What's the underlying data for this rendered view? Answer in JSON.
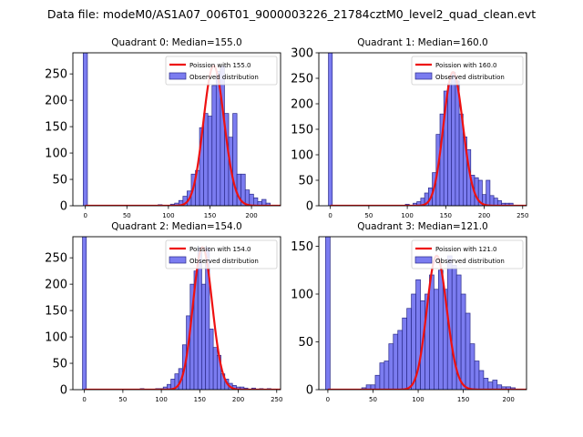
{
  "figure": {
    "suptitle": "Data file: modeM0/AS1A07_006T01_9000003226_21784cztM0_level2_quad_clean.evt"
  },
  "chart_data": [
    {
      "type": "bar",
      "title": "Quadrant 0: Median=155.0",
      "legend": [
        "Poission with 155.0",
        "Observed distribution"
      ],
      "legend_position": "top-right",
      "xlim": [
        -15,
        235
      ],
      "ylim": [
        0,
        290
      ],
      "xticks": [
        0,
        50,
        100,
        150,
        200
      ],
      "yticks": [
        0,
        50,
        100,
        150,
        200,
        250
      ],
      "bin_width": 5,
      "poisson_mean": 155,
      "zero_bin_value": 290,
      "bins": [
        [
          90,
          2
        ],
        [
          100,
          1
        ],
        [
          105,
          3
        ],
        [
          110,
          5
        ],
        [
          115,
          10
        ],
        [
          120,
          18
        ],
        [
          125,
          28
        ],
        [
          130,
          60
        ],
        [
          135,
          67
        ],
        [
          140,
          148
        ],
        [
          145,
          175
        ],
        [
          150,
          170
        ],
        [
          155,
          228
        ],
        [
          160,
          255
        ],
        [
          165,
          265
        ],
        [
          170,
          175
        ],
        [
          175,
          130
        ],
        [
          180,
          175
        ],
        [
          185,
          60
        ],
        [
          190,
          60
        ],
        [
          195,
          30
        ],
        [
          200,
          22
        ],
        [
          205,
          15
        ],
        [
          210,
          8
        ],
        [
          215,
          12
        ],
        [
          220,
          5
        ]
      ]
    },
    {
      "type": "bar",
      "title": "Quadrant 1: Median=160.0",
      "legend": [
        "Poission with 160.0",
        "Observed distribution"
      ],
      "legend_position": "top-right",
      "xlim": [
        -15,
        255
      ],
      "ylim": [
        0,
        300
      ],
      "xticks": [
        0,
        50,
        100,
        150,
        200,
        250
      ],
      "yticks": [
        0,
        50,
        100,
        150,
        200,
        250,
        300
      ],
      "bin_width": 5,
      "poisson_mean": 160,
      "zero_bin_value": 300,
      "bins": [
        [
          100,
          3
        ],
        [
          110,
          5
        ],
        [
          115,
          8
        ],
        [
          120,
          15
        ],
        [
          125,
          25
        ],
        [
          130,
          35
        ],
        [
          135,
          65
        ],
        [
          140,
          140
        ],
        [
          145,
          180
        ],
        [
          150,
          225
        ],
        [
          155,
          240
        ],
        [
          160,
          262
        ],
        [
          165,
          245
        ],
        [
          170,
          180
        ],
        [
          175,
          135
        ],
        [
          180,
          110
        ],
        [
          185,
          60
        ],
        [
          190,
          55
        ],
        [
          195,
          50
        ],
        [
          200,
          22
        ],
        [
          205,
          50
        ],
        [
          210,
          20
        ],
        [
          215,
          15
        ],
        [
          220,
          10
        ],
        [
          225,
          5
        ],
        [
          230,
          5
        ],
        [
          235,
          5
        ]
      ]
    },
    {
      "type": "bar",
      "title": "Quadrant 2: Median=154.0",
      "legend": [
        "Poission with 154.0",
        "Observed distribution"
      ],
      "legend_position": "top-right",
      "xlim": [
        -15,
        255
      ],
      "ylim": [
        0,
        290
      ],
      "xticks": [
        0,
        50,
        100,
        150,
        200,
        250
      ],
      "yticks": [
        0,
        50,
        100,
        150,
        200,
        250
      ],
      "bin_width": 5,
      "poisson_mean": 154,
      "zero_bin_value": 290,
      "bins": [
        [
          75,
          2
        ],
        [
          95,
          2
        ],
        [
          100,
          2
        ],
        [
          105,
          5
        ],
        [
          110,
          10
        ],
        [
          115,
          20
        ],
        [
          120,
          30
        ],
        [
          125,
          40
        ],
        [
          130,
          85
        ],
        [
          135,
          140
        ],
        [
          140,
          200
        ],
        [
          145,
          225
        ],
        [
          150,
          270
        ],
        [
          155,
          200
        ],
        [
          160,
          270
        ],
        [
          165,
          115
        ],
        [
          170,
          80
        ],
        [
          175,
          65
        ],
        [
          180,
          30
        ],
        [
          185,
          20
        ],
        [
          190,
          12
        ],
        [
          195,
          8
        ],
        [
          200,
          5
        ],
        [
          205,
          5
        ],
        [
          210,
          3
        ],
        [
          220,
          3
        ],
        [
          230,
          2
        ],
        [
          240,
          2
        ]
      ]
    },
    {
      "type": "bar",
      "title": "Quadrant 3: Median=121.0",
      "legend": [
        "Poission with 121.0",
        "Observed distribution"
      ],
      "legend_position": "top-right",
      "xlim": [
        -10,
        220
      ],
      "ylim": [
        0,
        160
      ],
      "xticks": [
        0,
        50,
        100,
        150,
        200
      ],
      "yticks": [
        0,
        50,
        100,
        150
      ],
      "bin_width": 5,
      "poisson_mean": 121,
      "zero_bin_value": 160,
      "bins": [
        [
          40,
          2
        ],
        [
          45,
          5
        ],
        [
          50,
          5
        ],
        [
          55,
          15
        ],
        [
          60,
          28
        ],
        [
          65,
          30
        ],
        [
          70,
          48
        ],
        [
          75,
          58
        ],
        [
          80,
          62
        ],
        [
          85,
          75
        ],
        [
          90,
          85
        ],
        [
          95,
          100
        ],
        [
          100,
          115
        ],
        [
          105,
          93
        ],
        [
          110,
          100
        ],
        [
          115,
          120
        ],
        [
          120,
          105
        ],
        [
          125,
          125
        ],
        [
          130,
          105
        ],
        [
          135,
          140
        ],
        [
          140,
          130
        ],
        [
          145,
          120
        ],
        [
          150,
          100
        ],
        [
          155,
          80
        ],
        [
          160,
          48
        ],
        [
          165,
          30
        ],
        [
          170,
          20
        ],
        [
          175,
          12
        ],
        [
          180,
          8
        ],
        [
          185,
          10
        ],
        [
          190,
          5
        ],
        [
          195,
          3
        ],
        [
          200,
          3
        ],
        [
          205,
          2
        ]
      ]
    }
  ]
}
